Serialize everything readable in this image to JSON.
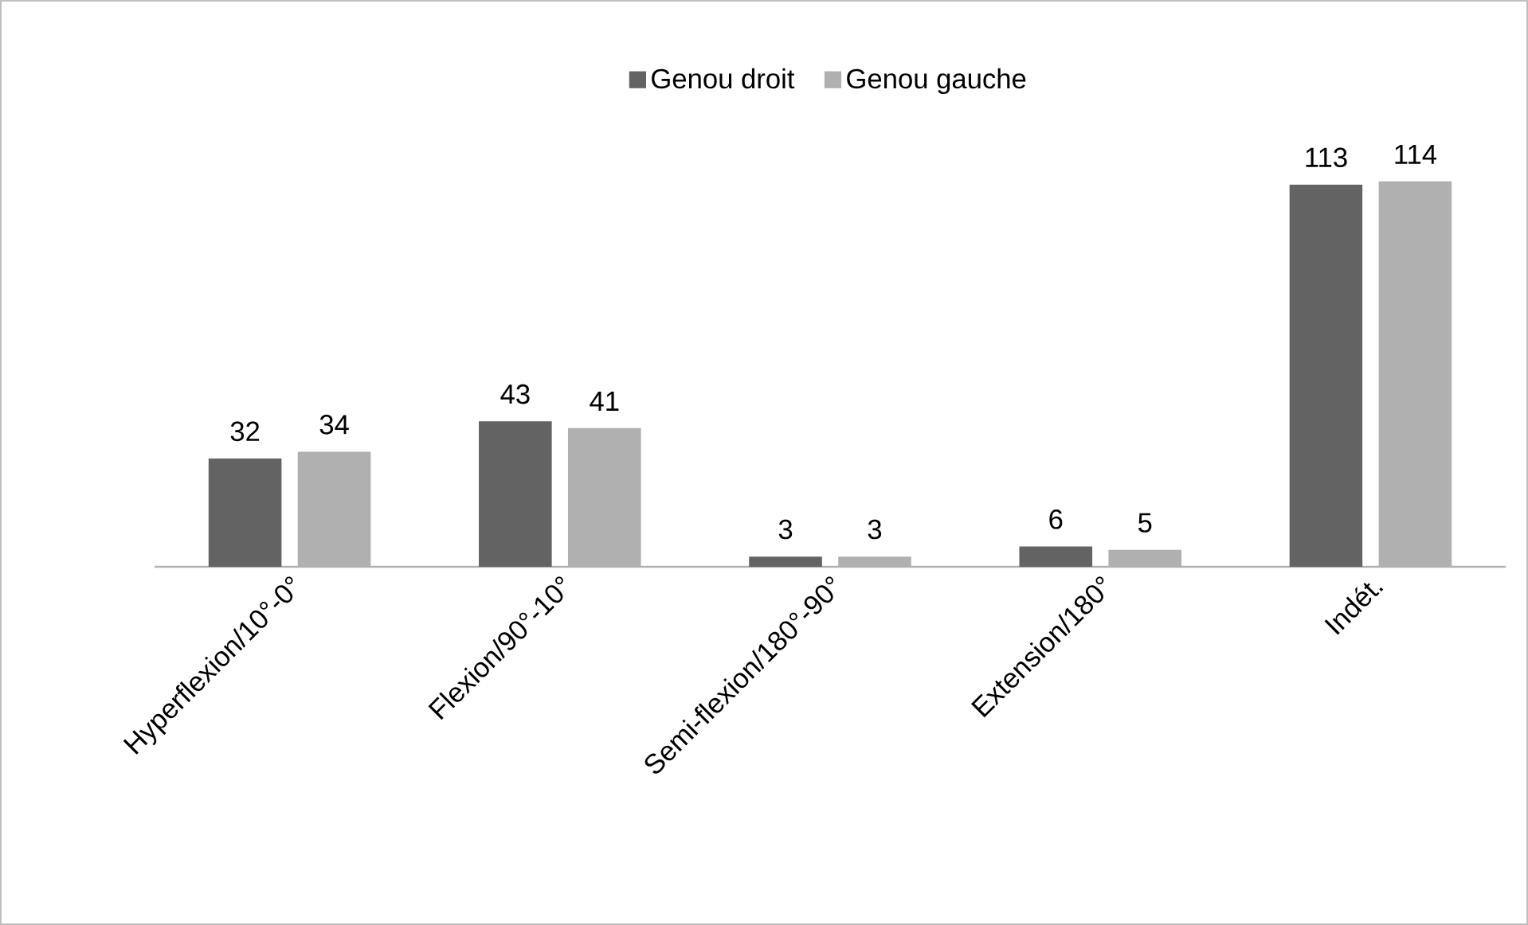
{
  "chart_data": {
    "type": "bar",
    "categories": [
      "Hyperflexion/10°-0°",
      "Flexion/90°-10°",
      "Semi-flexion/180°-90°",
      "Extension/180°",
      "Indét."
    ],
    "series": [
      {
        "name": "Genou droit",
        "color": "#636363",
        "values": [
          32,
          43,
          3,
          6,
          113
        ]
      },
      {
        "name": "Genou gauche",
        "color": "#b0b0b1",
        "values": [
          34,
          41,
          3,
          5,
          114
        ]
      }
    ],
    "data_labels": true,
    "legend": "top"
  }
}
